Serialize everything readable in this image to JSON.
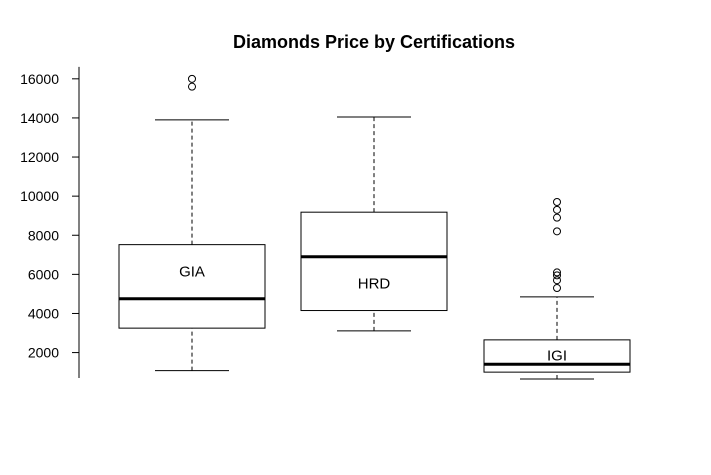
{
  "chart_data": {
    "type": "boxplot",
    "title": "Diamonds Price by Certifications",
    "xlabel": "",
    "ylabel": "",
    "ylim": [
      700,
      16400
    ],
    "yticks": [
      2000,
      4000,
      6000,
      8000,
      10000,
      12000,
      14000,
      16000
    ],
    "grid": false,
    "boxes": [
      {
        "label": "GIA",
        "min": 1080,
        "q1": 3250,
        "median": 4750,
        "q3": 7520,
        "max": 13900,
        "outliers": [
          15600,
          16000
        ]
      },
      {
        "label": "HRD",
        "min": 3110,
        "q1": 4150,
        "median": 6900,
        "q3": 9180,
        "max": 14050,
        "outliers": []
      },
      {
        "label": "IGI",
        "min": 650,
        "q1": 1000,
        "median": 1400,
        "q3": 2650,
        "max": 4850,
        "outliers": [
          5300,
          5700,
          5950,
          6100,
          8200,
          8900,
          9300,
          9700
        ]
      }
    ]
  }
}
